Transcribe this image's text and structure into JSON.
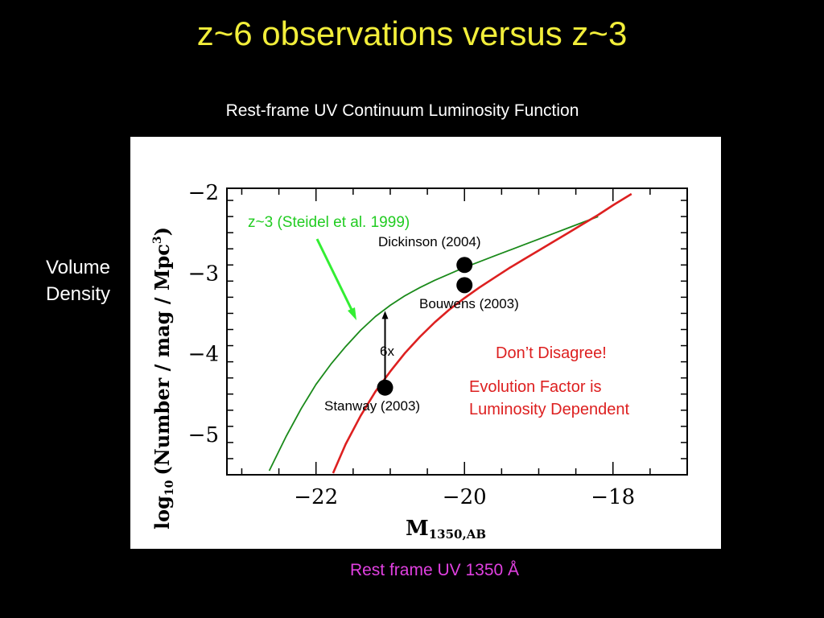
{
  "slide": {
    "title": "z~6 observations versus z~3",
    "chart_heading": "Rest-frame UV Continuum Luminosity Function",
    "side_label_line1": "Volume",
    "side_label_line2": "Density",
    "footer": "Rest frame UV 1350 Å"
  },
  "colors": {
    "title": "#f2ee3a",
    "background": "#000000",
    "z3_curve": "#1a8a1a",
    "z6_curve": "#dd2020",
    "z3_label": "#22cc22",
    "arrow": "#33ee33",
    "annotation_red": "#dd2020",
    "footer": "#e040e0"
  },
  "chart_data": {
    "type": "line",
    "xlabel_main": "M",
    "xlabel_sub": "1350,AB",
    "ylabel_main": "log",
    "ylabel_sub": "10",
    "ylabel_rest": "(Number / mag / Mpc",
    "ylabel_sup": "3",
    "ylabel_close": ")",
    "xlim": [
      -23.2,
      -17.0
    ],
    "ylim": [
      -5.5,
      -1.95
    ],
    "x_ticks": [
      -22,
      -20,
      -18
    ],
    "x_tick_labels": [
      "−22",
      "−20",
      "−18"
    ],
    "y_ticks": [
      -2,
      -3,
      -4,
      -5
    ],
    "y_tick_labels": [
      "−2",
      "−3",
      "−4",
      "−5"
    ],
    "series": [
      {
        "name": "z~3 (Steidel et al. 1999)",
        "x": [
          -22.63,
          -22.4,
          -22.2,
          -22.0,
          -21.8,
          -21.6,
          -21.4,
          -21.2,
          -21.0,
          -20.8,
          -20.6,
          -20.4,
          -20.2,
          -20.0,
          -19.8,
          -19.6,
          -19.4,
          -19.2,
          -19.0,
          -18.8,
          -18.6,
          -18.4,
          -18.2
        ],
        "y": [
          -5.45,
          -5.02,
          -4.68,
          -4.38,
          -4.13,
          -3.91,
          -3.71,
          -3.54,
          -3.4,
          -3.28,
          -3.18,
          -3.09,
          -3.01,
          -2.93,
          -2.86,
          -2.79,
          -2.72,
          -2.65,
          -2.58,
          -2.51,
          -2.44,
          -2.37,
          -2.3
        ]
      },
      {
        "name": "z~6",
        "x": [
          -21.77,
          -21.6,
          -21.4,
          -21.2,
          -21.0,
          -20.8,
          -20.6,
          -20.4,
          -20.2,
          -20.0,
          -19.8,
          -19.6,
          -19.4,
          -19.2,
          -19.0,
          -18.8,
          -18.6,
          -18.4,
          -18.2,
          -18.0,
          -17.75
        ],
        "y": [
          -5.48,
          -5.12,
          -4.77,
          -4.47,
          -4.22,
          -3.99,
          -3.79,
          -3.61,
          -3.45,
          -3.31,
          -3.18,
          -3.06,
          -2.94,
          -2.83,
          -2.72,
          -2.61,
          -2.5,
          -2.39,
          -2.28,
          -2.16,
          -2.02
        ]
      }
    ],
    "points": [
      {
        "name": "Dickinson (2004)",
        "x": -20.0,
        "y": -2.9
      },
      {
        "name": "Bouwens (2003)",
        "x": -20.0,
        "y": -3.15
      },
      {
        "name": "Stanway (2003)",
        "x": -21.07,
        "y": -4.42
      }
    ],
    "annotations": {
      "z3_label": "z~3 (Steidel et al. 1999)",
      "dickinson": "Dickinson (2004)",
      "bouwens": "Bouwens (2003)",
      "stanway": "Stanway (2003)",
      "factor": "6x",
      "dont_disagree": "Don’t Disagree!",
      "evolution_line1": "Evolution Factor is",
      "evolution_line2": "Luminosity Dependent"
    },
    "factor_arrow": {
      "x": -21.07,
      "y_from": -4.42,
      "y_to": -3.47
    },
    "grid": false,
    "legend": "none"
  }
}
